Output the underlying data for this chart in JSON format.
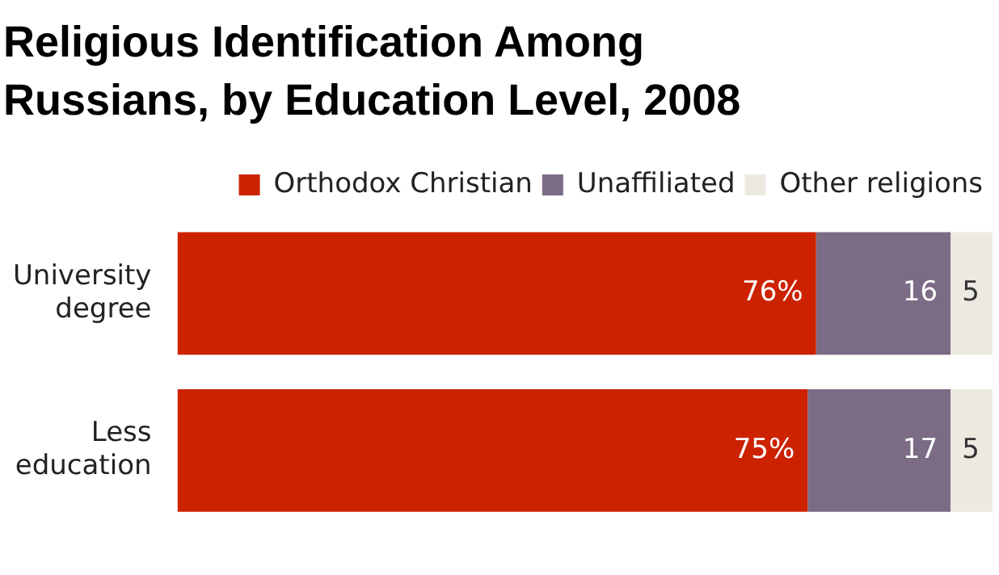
{
  "chart_data": {
    "type": "bar",
    "orientation": "horizontal",
    "stacked": true,
    "title": "Religious Identification Among\nRussians, by Education Level, 2008",
    "categories": [
      "University degree",
      "Less education"
    ],
    "legend": "top",
    "series": [
      {
        "name": "Orthodox Christian",
        "color": "#cc2200",
        "values": [
          76,
          75
        ],
        "value_labels": [
          "76%",
          "75%"
        ]
      },
      {
        "name": "Unaffiliated",
        "color": "#7b6b85",
        "values": [
          16,
          17
        ],
        "value_labels": [
          "16",
          "17"
        ]
      },
      {
        "name": "Other religions",
        "color": "#ece9e0",
        "values": [
          5,
          5
        ],
        "value_labels": [
          "5",
          "5"
        ]
      }
    ]
  }
}
